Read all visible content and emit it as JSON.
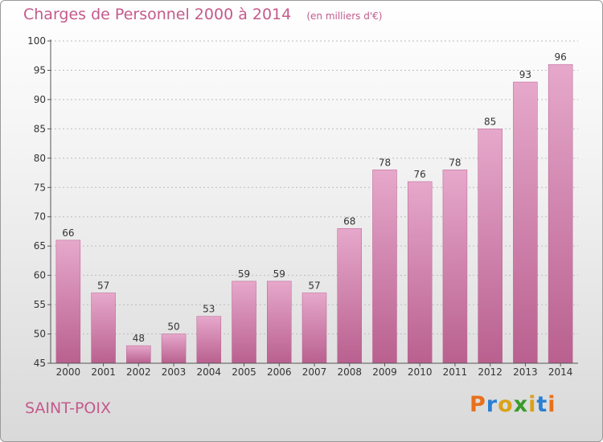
{
  "header": {
    "title": "Charges de Personnel 2000 à 2014",
    "subtitle": "(en milliers d'€)"
  },
  "footer": {
    "commune": "SAINT-POIX",
    "brand": "Proxiti",
    "brand_colors": [
      "#e8701a",
      "#2a7fd4",
      "#d9a21a",
      "#3a9a2a",
      "#d9a21a",
      "#2a7fd4",
      "#e8701a"
    ]
  },
  "colors": {
    "bar": "#d57fae",
    "bar_light": "#e6a8cb",
    "bar_dark": "#b9608f",
    "text_accent": "#c45a8c"
  },
  "chart_data": {
    "type": "bar",
    "categories": [
      "2000",
      "2001",
      "2002",
      "2003",
      "2004",
      "2005",
      "2006",
      "2007",
      "2008",
      "2009",
      "2010",
      "2011",
      "2012",
      "2013",
      "2014"
    ],
    "values": [
      66,
      57,
      48,
      50,
      53,
      59,
      59,
      57,
      68,
      78,
      76,
      78,
      85,
      93,
      96
    ],
    "title": "Charges de Personnel 2000 à 2014",
    "subtitle": "(en milliers d'€)",
    "xlabel": "",
    "ylabel": "",
    "ylim": [
      45,
      100
    ],
    "yticks": [
      45,
      50,
      55,
      60,
      65,
      70,
      75,
      80,
      85,
      90,
      95,
      100
    ],
    "grid": true
  }
}
